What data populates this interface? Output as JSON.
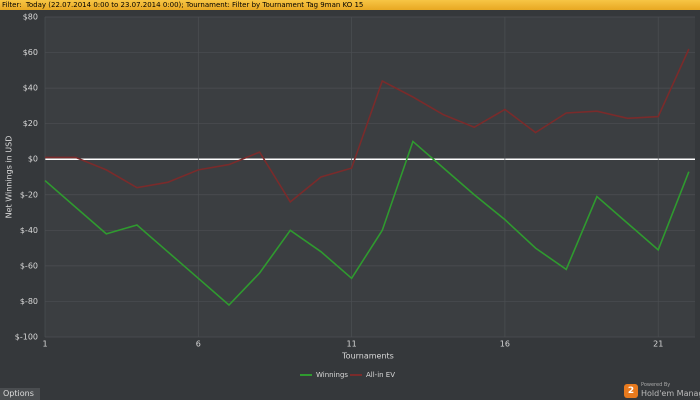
{
  "filter": {
    "label": "Filter:",
    "text": "Today (22.07.2014 0:00 to 23.07.2014 0:00);  Tournament: Filter by Tournament Tag  9man KO 15"
  },
  "chart_data": {
    "type": "line",
    "y_label": "Net Winnings in USD",
    "x_label": "Tournaments",
    "x": [
      1,
      2,
      3,
      4,
      5,
      6,
      7,
      8,
      9,
      10,
      11,
      12,
      13,
      14,
      15,
      16,
      17,
      18,
      19,
      20,
      21,
      22
    ],
    "series": [
      {
        "name": "Winnings",
        "color": "#2f9a2f",
        "values": [
          -12,
          -27,
          -42,
          -37,
          -52,
          -67,
          -82,
          -64,
          -40,
          -52,
          -67,
          -40,
          10,
          -5,
          -20,
          -34,
          -50,
          -62,
          -21,
          -36,
          -51,
          -7
        ]
      },
      {
        "name": "All-in EV",
        "color": "#7a2b2b",
        "values": [
          1,
          1,
          -6,
          -16,
          -13,
          -6,
          -3,
          4,
          -24,
          -10,
          -5,
          44,
          35,
          25,
          18,
          28,
          15,
          26,
          27,
          23,
          24,
          62
        ]
      }
    ],
    "xlim": [
      1,
      22.2
    ],
    "xticks": [
      1,
      6,
      11,
      16,
      21
    ],
    "ylim": [
      -100,
      80
    ],
    "yticks": [
      {
        "value": -100,
        "label": "$-100"
      },
      {
        "value": -80,
        "label": "$-80"
      },
      {
        "value": -60,
        "label": "$-60"
      },
      {
        "value": -40,
        "label": "$-40"
      },
      {
        "value": -20,
        "label": "$-20"
      },
      {
        "value": 0,
        "label": "$0"
      },
      {
        "value": 20,
        "label": "$20"
      },
      {
        "value": 40,
        "label": "$40"
      },
      {
        "value": 60,
        "label": "$60"
      },
      {
        "value": 80,
        "label": "$80"
      }
    ],
    "grid": true,
    "legend": "bottom"
  },
  "footer": {
    "options": "Options",
    "logo_mark": "2",
    "powered": "Powered By",
    "brand": "Hold'em Manager"
  }
}
